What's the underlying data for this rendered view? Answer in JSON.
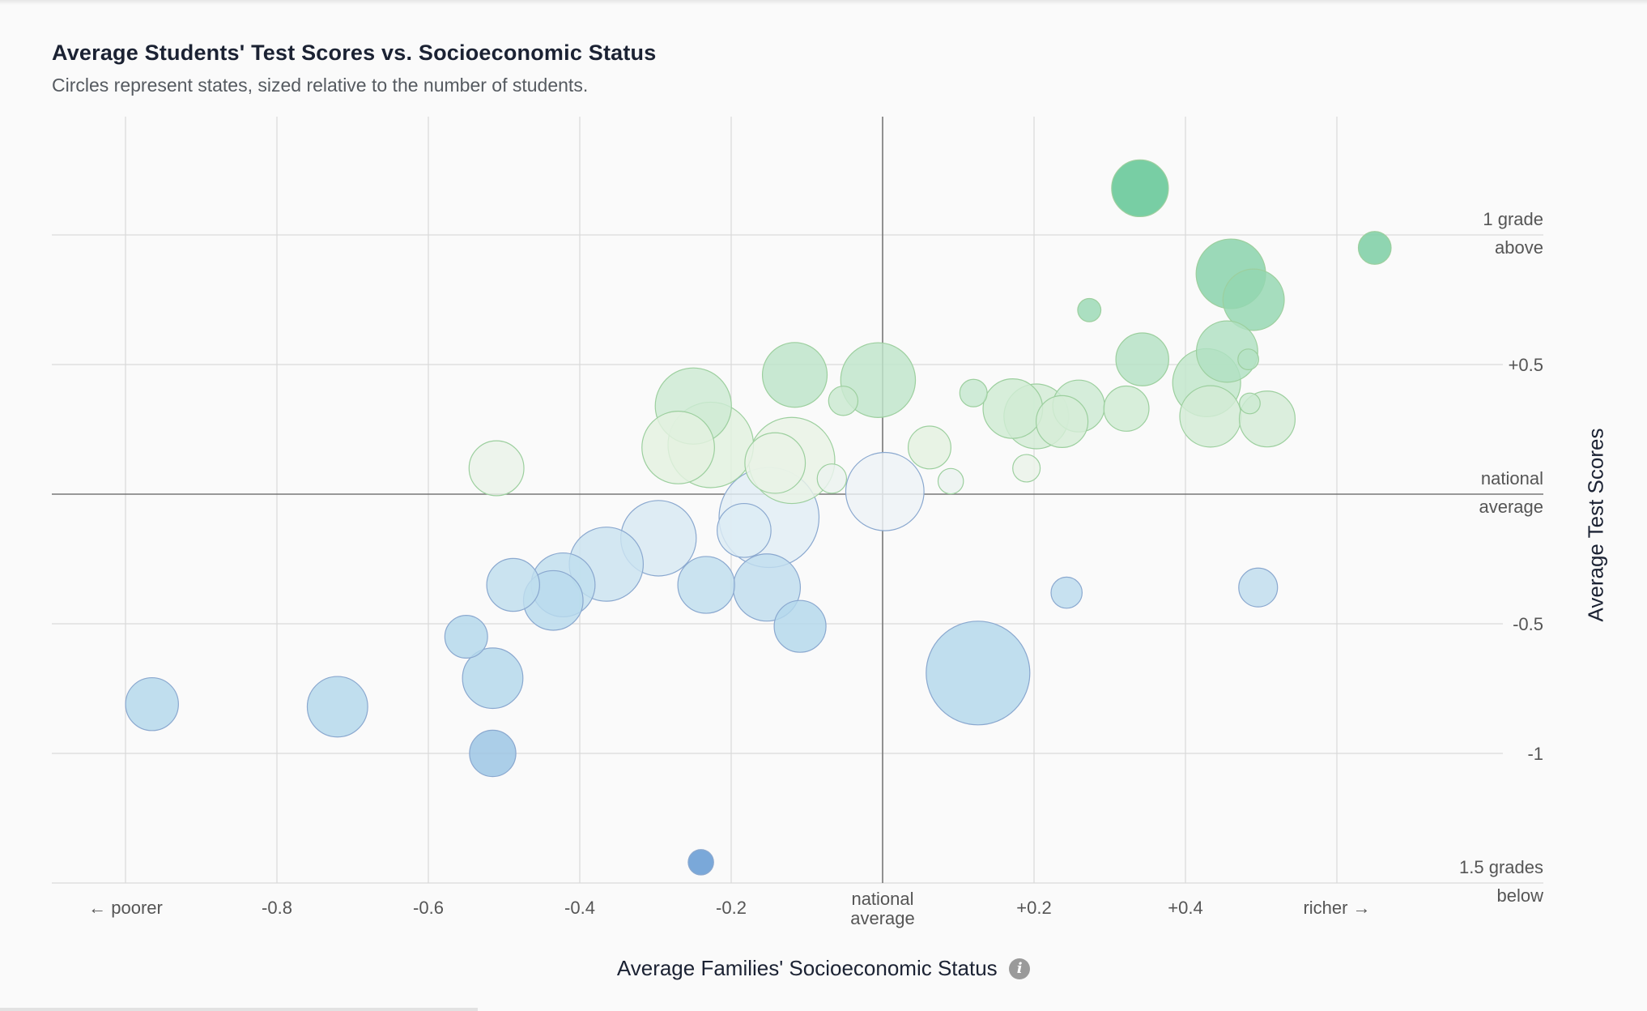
{
  "chart_data": {
    "type": "scatter",
    "title": "Average Students' Test Scores vs. Socioeconomic Status",
    "subtitle": "Circles represent states, sized relative to the number of students.",
    "xlabel": "Average Families' Socioeconomic Status",
    "ylabel": "Average Test Scores",
    "xlim": [
      -1.0,
      0.8
    ],
    "ylim": [
      -1.5,
      1.0
    ],
    "grid": true,
    "x_ticks": [
      {
        "value": -0.8,
        "label": "-0.8"
      },
      {
        "value": -0.6,
        "label": "-0.6"
      },
      {
        "value": -0.4,
        "label": "-0.4"
      },
      {
        "value": -0.2,
        "label": "-0.2"
      },
      {
        "value": 0.2,
        "label": "+0.2"
      },
      {
        "value": 0.4,
        "label": "+0.4"
      }
    ],
    "x_left_label": "← poorer",
    "x_right_label": "richer →",
    "x_zero_label": [
      "national",
      "average"
    ],
    "y_ticks": [
      {
        "value": 1.0,
        "label": [
          "1 grade",
          "above"
        ]
      },
      {
        "value": 0.5,
        "label": [
          "+0.5"
        ]
      },
      {
        "value": 0.0,
        "label": [
          "national",
          "average"
        ]
      },
      {
        "value": -0.5,
        "label": [
          "-0.5"
        ]
      },
      {
        "value": -1.0,
        "label": [
          "-1"
        ]
      },
      {
        "value": -1.5,
        "label": [
          "1.5 grades",
          "below"
        ]
      }
    ],
    "colors": {
      "high": "#5cc491",
      "mid": "#e8f3e2",
      "low": "#b3d8ec",
      "lowest": "#5e96d2"
    },
    "points": [
      {
        "x": 0.34,
        "y": 1.18,
        "size": 0.3
      },
      {
        "x": 0.65,
        "y": 0.95,
        "size": 0.1
      },
      {
        "x": 0.46,
        "y": 0.85,
        "size": 0.45
      },
      {
        "x": 0.49,
        "y": 0.75,
        "size": 0.35
      },
      {
        "x": 0.273,
        "y": 0.71,
        "size": 0.05
      },
      {
        "x": 0.455,
        "y": 0.55,
        "size": 0.35
      },
      {
        "x": 0.343,
        "y": 0.52,
        "size": 0.26
      },
      {
        "x": 0.483,
        "y": 0.52,
        "size": 0.04
      },
      {
        "x": 0.428,
        "y": 0.43,
        "size": 0.43
      },
      {
        "x": 0.485,
        "y": 0.35,
        "size": 0.04
      },
      {
        "x": 0.433,
        "y": 0.3,
        "size": 0.35
      },
      {
        "x": 0.508,
        "y": 0.29,
        "size": 0.29
      },
      {
        "x": 0.322,
        "y": 0.33,
        "size": 0.19
      },
      {
        "x": 0.259,
        "y": 0.34,
        "size": 0.25
      },
      {
        "x": 0.237,
        "y": 0.28,
        "size": 0.25
      },
      {
        "x": 0.172,
        "y": 0.33,
        "size": 0.33
      },
      {
        "x": 0.203,
        "y": 0.3,
        "size": 0.39
      },
      {
        "x": 0.12,
        "y": 0.39,
        "size": 0.07
      },
      {
        "x": 0.062,
        "y": 0.18,
        "size": 0.17
      },
      {
        "x": 0.19,
        "y": 0.1,
        "size": 0.07
      },
      {
        "x": 0.09,
        "y": 0.05,
        "size": 0.06
      },
      {
        "x": -0.006,
        "y": 0.44,
        "size": 0.52
      },
      {
        "x": -0.116,
        "y": 0.46,
        "size": 0.39
      },
      {
        "x": -0.052,
        "y": 0.36,
        "size": 0.08
      },
      {
        "x": -0.25,
        "y": 0.34,
        "size": 0.54
      },
      {
        "x": -0.227,
        "y": 0.19,
        "size": 0.68
      },
      {
        "x": -0.27,
        "y": 0.18,
        "size": 0.49
      },
      {
        "x": -0.12,
        "y": 0.13,
        "size": 0.69
      },
      {
        "x": -0.142,
        "y": 0.12,
        "size": 0.34
      },
      {
        "x": -0.51,
        "y": 0.1,
        "size": 0.28
      },
      {
        "x": -0.067,
        "y": 0.06,
        "size": 0.08
      },
      {
        "x": 0.003,
        "y": 0.01,
        "size": 0.57
      },
      {
        "x": -0.15,
        "y": -0.09,
        "size": 0.93
      },
      {
        "x": -0.183,
        "y": -0.14,
        "size": 0.27
      },
      {
        "x": -0.296,
        "y": -0.17,
        "size": 0.53
      },
      {
        "x": -0.365,
        "y": -0.27,
        "size": 0.51
      },
      {
        "x": -0.422,
        "y": -0.35,
        "size": 0.38
      },
      {
        "x": -0.435,
        "y": -0.41,
        "size": 0.33
      },
      {
        "x": -0.488,
        "y": -0.35,
        "size": 0.26
      },
      {
        "x": -0.233,
        "y": -0.35,
        "size": 0.3
      },
      {
        "x": -0.153,
        "y": -0.36,
        "size": 0.42
      },
      {
        "x": -0.109,
        "y": -0.51,
        "size": 0.25
      },
      {
        "x": -0.55,
        "y": -0.55,
        "size": 0.17
      },
      {
        "x": -0.515,
        "y": -0.71,
        "size": 0.34
      },
      {
        "x": -0.965,
        "y": -0.81,
        "size": 0.26
      },
      {
        "x": -0.72,
        "y": -0.82,
        "size": 0.34
      },
      {
        "x": -0.515,
        "y": -1.0,
        "size": 0.2
      },
      {
        "x": -0.24,
        "y": -1.42,
        "size": 0.06
      },
      {
        "x": 0.126,
        "y": -0.69,
        "size": 1.0
      },
      {
        "x": 0.243,
        "y": -0.38,
        "size": 0.09
      },
      {
        "x": 0.496,
        "y": -0.36,
        "size": 0.14
      }
    ]
  }
}
